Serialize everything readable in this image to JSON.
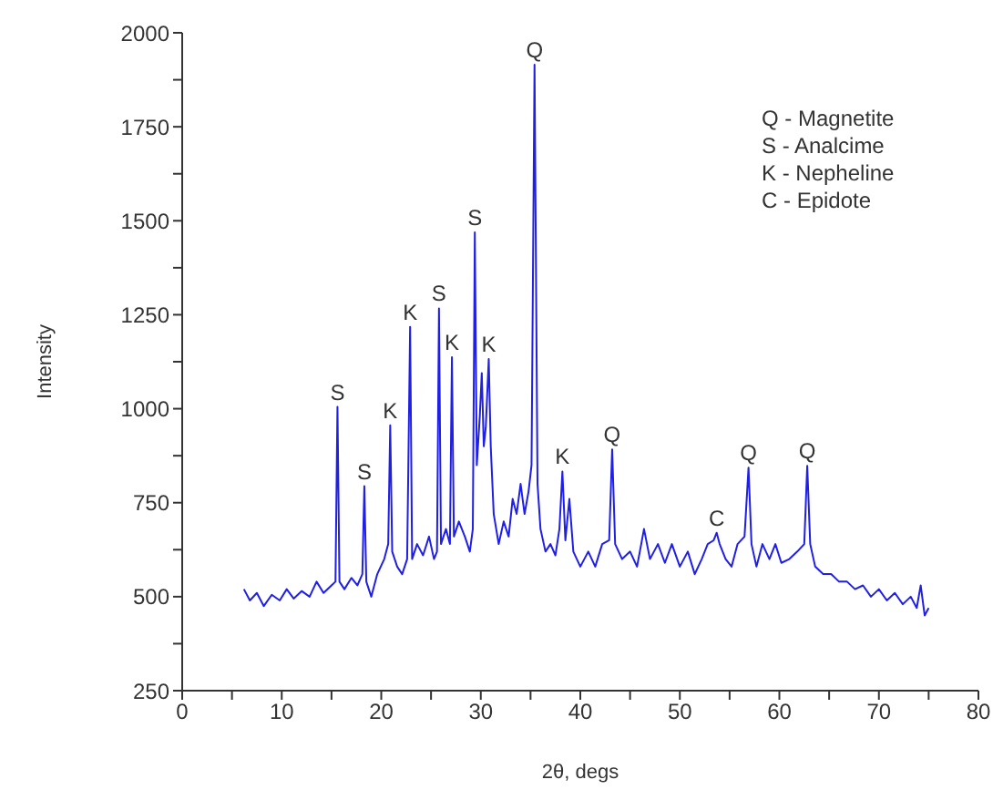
{
  "chart_data": {
    "type": "line",
    "xlabel": "2θ, degs",
    "ylabel": "Intensity",
    "xlim": [
      0,
      80
    ],
    "ylim": [
      250,
      2000
    ],
    "xticks": [
      0,
      {
        "value": 5,
        "label": null
      },
      10,
      {
        "value": 15,
        "label": null
      },
      20,
      {
        "value": 25,
        "label": null
      },
      30,
      {
        "value": 35,
        "label": null
      },
      40,
      {
        "value": 45,
        "label": null
      },
      50,
      {
        "value": 55,
        "label": null
      },
      60,
      {
        "value": 65,
        "label": null
      },
      70,
      {
        "value": 75,
        "label": null
      },
      80
    ],
    "yticks": [
      250,
      {
        "value": 375,
        "label": null
      },
      500,
      {
        "value": 625,
        "label": null
      },
      750,
      {
        "value": 875,
        "label": null
      },
      1000,
      {
        "value": 1125,
        "label": null
      },
      1250,
      {
        "value": 1375,
        "label": null
      },
      1500,
      {
        "value": 1625,
        "label": null
      },
      1750,
      {
        "value": 1875,
        "label": null
      },
      2000
    ],
    "grid": false,
    "legend": false,
    "marker": "none",
    "line_style": "solid",
    "series": [
      {
        "color": "#1f1fe6",
        "x": [
          6.2,
          6.8,
          7.5,
          8.2,
          9,
          9.8,
          10.5,
          11.2,
          12,
          12.8,
          13.5,
          14.2,
          15,
          15.4,
          15.6,
          15.8,
          16.3,
          17,
          17.6,
          18.1,
          18.3,
          18.5,
          19,
          19.6,
          20.3,
          20.7,
          20.9,
          21.1,
          21.6,
          22.1,
          22.6,
          22.9,
          23.1,
          23.6,
          24.2,
          24.8,
          25.3,
          25.6,
          25.8,
          26,
          26.5,
          26.9,
          27.1,
          27.3,
          27.8,
          28.4,
          28.9,
          29.2,
          29.4,
          29.6,
          29.9,
          30.1,
          30.3,
          30.5,
          30.8,
          31,
          31.3,
          31.8,
          32.3,
          32.8,
          33.2,
          33.6,
          34,
          34.4,
          34.8,
          35.1,
          35.4,
          35.7,
          36,
          36.5,
          37,
          37.5,
          37.9,
          38.2,
          38.5,
          38.9,
          39.3,
          40,
          40.8,
          41.5,
          42.2,
          42.9,
          43.2,
          43.5,
          44.2,
          45,
          45.7,
          46.4,
          47,
          47.8,
          48.5,
          49.2,
          50,
          50.8,
          51.5,
          52.2,
          52.8,
          53.4,
          53.7,
          54,
          54.6,
          55.2,
          55.8,
          56.5,
          56.9,
          57.2,
          57.7,
          58.3,
          59,
          59.6,
          60.2,
          61,
          61.8,
          62.5,
          62.8,
          63.1,
          63.6,
          64.4,
          65.2,
          66,
          66.8,
          67.6,
          68.4,
          69.2,
          70,
          70.8,
          71.6,
          72.4,
          73.2,
          73.8,
          74.2,
          74.6,
          75
        ],
        "values": [
          520,
          490,
          510,
          475,
          505,
          490,
          520,
          495,
          515,
          500,
          540,
          510,
          530,
          540,
          1005,
          540,
          520,
          550,
          530,
          560,
          794,
          540,
          500,
          560,
          600,
          640,
          956,
          620,
          580,
          560,
          600,
          1218,
          600,
          640,
          610,
          660,
          600,
          620,
          1267,
          640,
          680,
          640,
          1137,
          660,
          700,
          660,
          620,
          680,
          1469,
          850,
          980,
          1095,
          900,
          950,
          1132,
          900,
          720,
          640,
          700,
          660,
          760,
          720,
          800,
          720,
          780,
          850,
          1915,
          800,
          680,
          620,
          640,
          610,
          680,
          833,
          650,
          760,
          620,
          580,
          620,
          580,
          640,
          650,
          892,
          640,
          600,
          620,
          580,
          680,
          600,
          640,
          590,
          640,
          580,
          620,
          560,
          600,
          640,
          650,
          670,
          640,
          600,
          580,
          640,
          660,
          843,
          640,
          580,
          640,
          600,
          640,
          590,
          600,
          620,
          640,
          848,
          640,
          580,
          560,
          560,
          540,
          540,
          520,
          530,
          500,
          520,
          490,
          510,
          480,
          500,
          470,
          530,
          450,
          470
        ]
      }
    ],
    "annotations": [
      {
        "text": "S",
        "x": 15.6,
        "y": 1005
      },
      {
        "text": "S",
        "x": 18.3,
        "y": 794
      },
      {
        "text": "K",
        "x": 20.9,
        "y": 956
      },
      {
        "text": "K",
        "x": 22.9,
        "y": 1218
      },
      {
        "text": "S",
        "x": 25.8,
        "y": 1267
      },
      {
        "text": "K",
        "x": 27.1,
        "y": 1137
      },
      {
        "text": "S",
        "x": 29.4,
        "y": 1469
      },
      {
        "text": "K",
        "x": 30.8,
        "y": 1132
      },
      {
        "text": "Q",
        "x": 35.4,
        "y": 1915
      },
      {
        "text": "K",
        "x": 38.2,
        "y": 833
      },
      {
        "text": "Q",
        "x": 43.2,
        "y": 892
      },
      {
        "text": "C",
        "x": 53.7,
        "y": 670
      },
      {
        "text": "Q",
        "x": 56.9,
        "y": 843
      },
      {
        "text": "Q",
        "x": 62.8,
        "y": 848
      },
      "Q - Magnetite",
      "S - Analcime",
      "K - Nepheline",
      "C - Epidote"
    ]
  }
}
